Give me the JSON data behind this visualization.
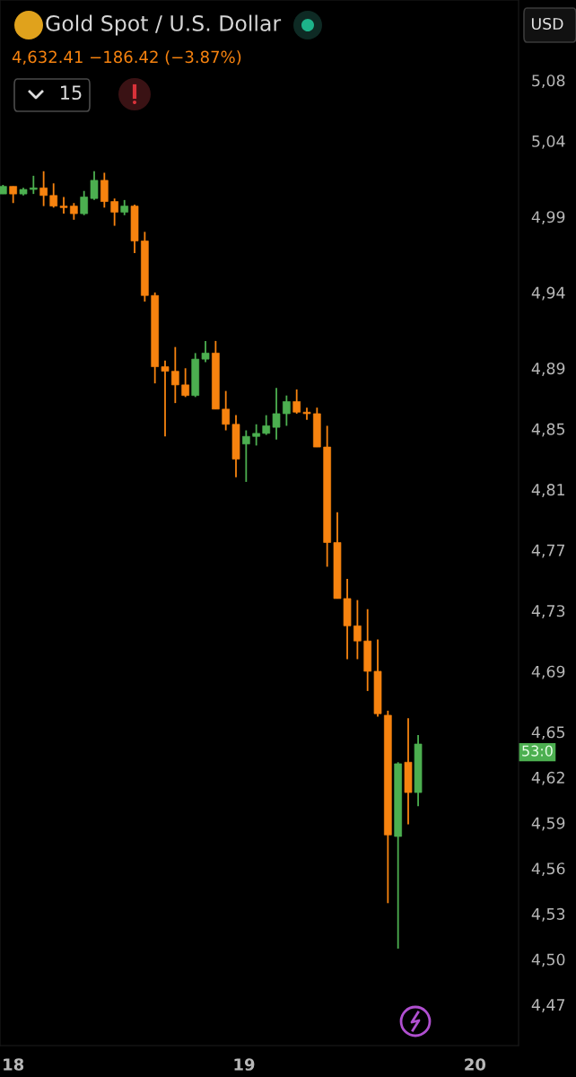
{
  "chart_data": {
    "type": "candlestick",
    "title": "Gold Spot / U.S. Dollar",
    "subtitle": "4,632.41 −186.42 (−3.87%)",
    "annotations": [
      "15",
      "USD",
      "53:0"
    ],
    "x": [
      17.956,
      18.0,
      18.044,
      18.088,
      18.132,
      18.175,
      18.219,
      18.263,
      18.307,
      18.351,
      18.395,
      18.439,
      18.482,
      18.526,
      18.57,
      18.614,
      18.658,
      18.702,
      18.746,
      18.789,
      18.833,
      18.877,
      18.921,
      18.965,
      19.009,
      19.053,
      19.096,
      19.14,
      19.184,
      19.228,
      19.272,
      19.316,
      19.36,
      19.404,
      19.447,
      19.491,
      19.535,
      19.579,
      19.623,
      19.667,
      19.711,
      19.754
    ],
    "ohlc": [
      [
        5.005,
        5.011,
        5.005,
        5.01
      ],
      [
        5.01,
        5.01,
        4.999,
        5.005
      ],
      [
        5.005,
        5.009,
        5.004,
        5.008
      ],
      [
        5.008,
        5.017,
        5.005,
        5.009
      ],
      [
        5.009,
        5.02,
        4.997,
        5.004
      ],
      [
        5.004,
        5.012,
        4.996,
        4.997
      ],
      [
        4.997,
        5.003,
        4.992,
        4.996
      ],
      [
        4.997,
        4.999,
        4.988,
        4.992
      ],
      [
        4.992,
        5.007,
        4.991,
        5.003
      ],
      [
        5.002,
        5.02,
        5.001,
        5.014
      ],
      [
        5.014,
        5.019,
        4.996,
        5.0
      ],
      [
        5.0,
        5.002,
        4.984,
        4.993
      ],
      [
        4.993,
        5.001,
        4.991,
        4.997
      ],
      [
        4.997,
        4.998,
        4.966,
        4.974
      ],
      [
        4.974,
        4.98,
        4.934,
        4.938
      ],
      [
        4.938,
        4.94,
        4.88,
        4.891
      ],
      [
        4.891,
        4.895,
        4.845,
        4.888
      ],
      [
        4.888,
        4.904,
        4.867,
        4.879
      ],
      [
        4.879,
        4.89,
        4.871,
        4.872
      ],
      [
        4.872,
        4.9,
        4.871,
        4.896
      ],
      [
        4.896,
        4.908,
        4.894,
        4.9
      ],
      [
        4.9,
        4.908,
        4.863,
        4.863
      ],
      [
        4.863,
        4.875,
        4.849,
        4.853
      ],
      [
        4.853,
        4.859,
        4.818,
        4.83
      ],
      [
        4.84,
        4.849,
        4.815,
        4.845
      ],
      [
        4.845,
        4.853,
        4.839,
        4.847
      ],
      [
        4.847,
        4.859,
        4.846,
        4.852
      ],
      [
        4.851,
        4.877,
        4.843,
        4.86
      ],
      [
        4.86,
        4.872,
        4.852,
        4.868
      ],
      [
        4.868,
        4.876,
        4.86,
        4.861
      ],
      [
        4.861,
        4.864,
        4.856,
        4.86
      ],
      [
        4.86,
        4.864,
        4.838,
        4.838
      ],
      [
        4.838,
        4.852,
        4.759,
        4.775
      ],
      [
        4.775,
        4.795,
        4.738,
        4.738
      ],
      [
        4.738,
        4.751,
        4.698,
        4.72
      ],
      [
        4.72,
        4.737,
        4.698,
        4.71
      ],
      [
        4.71,
        4.731,
        4.677,
        4.69
      ],
      [
        4.69,
        4.711,
        4.66,
        4.662
      ],
      [
        4.661,
        4.664,
        4.537,
        4.582
      ],
      [
        4.581,
        4.63,
        4.507,
        4.629
      ],
      [
        4.63,
        4.659,
        4.589,
        4.61
      ],
      [
        4.61,
        4.648,
        4.601,
        4.642
      ]
    ],
    "colors": [
      "#4caf50",
      "#f7830f",
      "#4caf50",
      "#4caf50",
      "#f7830f",
      "#f7830f",
      "#f7830f",
      "#f7830f",
      "#4caf50",
      "#4caf50",
      "#f7830f",
      "#f7830f",
      "#4caf50",
      "#f7830f",
      "#f7830f",
      "#f7830f",
      "#f7830f",
      "#f7830f",
      "#f7830f",
      "#4caf50",
      "#4caf50",
      "#f7830f",
      "#f7830f",
      "#f7830f",
      "#4caf50",
      "#4caf50",
      "#4caf50",
      "#4caf50",
      "#4caf50",
      "#f7830f",
      "#f7830f",
      "#f7830f",
      "#f7830f",
      "#f7830f",
      "#f7830f",
      "#f7830f",
      "#f7830f",
      "#f7830f",
      "#f7830f",
      "#4caf50",
      "#f7830f",
      "#4caf50"
    ],
    "xlim": [
      17.943,
      20.189
    ],
    "xticks": [
      18,
      19,
      20
    ],
    "ylim": [
      4.443,
      5.133
    ],
    "yticks": [
      {
        "value": 5.08,
        "label": "5,08"
      },
      {
        "value": 5.04,
        "label": "5,04"
      },
      {
        "value": 4.99,
        "label": "4,99"
      },
      {
        "value": 4.94,
        "label": "4,94"
      },
      {
        "value": 4.89,
        "label": "4,89"
      },
      {
        "value": 4.85,
        "label": "4,85"
      },
      {
        "value": 4.81,
        "label": "4,81"
      },
      {
        "value": 4.77,
        "label": "4,77"
      },
      {
        "value": 4.73,
        "label": "4,73"
      },
      {
        "value": 4.69,
        "label": "4,69"
      },
      {
        "value": 4.65,
        "label": "4,65"
      },
      {
        "value": 4.62,
        "label": "4,62"
      },
      {
        "value": 4.59,
        "label": "4,59"
      },
      {
        "value": 4.56,
        "label": "4,56"
      },
      {
        "value": 4.53,
        "label": "4,53"
      },
      {
        "value": 4.5,
        "label": "4,50"
      },
      {
        "value": 4.47,
        "label": "4,47"
      }
    ]
  }
}
